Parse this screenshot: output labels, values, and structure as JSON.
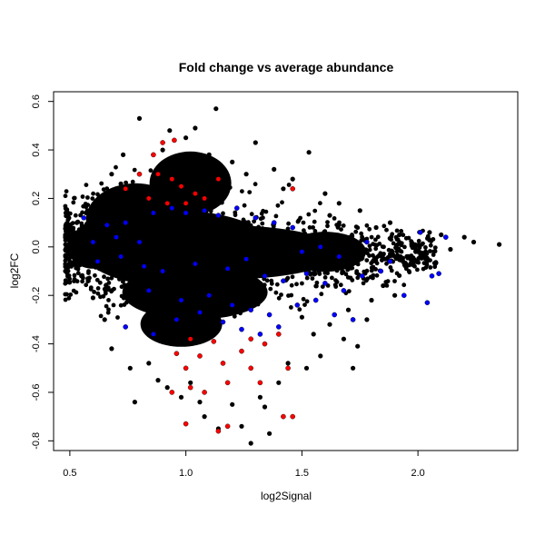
{
  "chart_data": {
    "type": "scatter",
    "title": "Fold change vs average abundance",
    "xlabel": "log2Signal",
    "ylabel": "log2FC",
    "xlim": [
      0.43,
      2.43
    ],
    "ylim": [
      -0.84,
      0.64
    ],
    "x_ticks": [
      0.5,
      1.0,
      1.5,
      2.0
    ],
    "x_tick_labels": [
      "0.5",
      "1.0",
      "1.5",
      "2.0"
    ],
    "y_ticks": [
      -0.8,
      -0.6,
      -0.4,
      -0.2,
      0.0,
      0.2,
      0.4,
      0.6
    ],
    "y_tick_labels": [
      "-0.8",
      "-0.6",
      "-0.4",
      "-0.2",
      "0.0",
      "0.2",
      "0.4",
      "0.6"
    ],
    "grid": false,
    "series": [
      {
        "color": "#000000",
        "points": [
          [
            0.8,
            0.53
          ],
          [
            1.13,
            0.57
          ],
          [
            1.04,
            0.49
          ],
          [
            0.93,
            0.48
          ],
          [
            1.3,
            0.43
          ],
          [
            1.53,
            0.39
          ],
          [
            0.73,
            0.38
          ],
          [
            1.2,
            0.35
          ],
          [
            1.0,
            0.45
          ],
          [
            1.38,
            0.32
          ],
          [
            1.46,
            0.28
          ],
          [
            0.68,
            0.3
          ],
          [
            1.6,
            0.22
          ],
          [
            1.75,
            0.15
          ],
          [
            1.62,
            0.13
          ],
          [
            1.88,
            0.1
          ],
          [
            2.05,
            0.06
          ],
          [
            2.1,
            0.05
          ],
          [
            2.2,
            0.04
          ],
          [
            2.35,
            0.01
          ],
          [
            2.24,
            0.02
          ],
          [
            2.14,
            -0.01
          ],
          [
            2.03,
            -0.04
          ],
          [
            1.95,
            -0.08
          ],
          [
            1.85,
            -0.16
          ],
          [
            1.78,
            -0.3
          ],
          [
            1.74,
            -0.41
          ],
          [
            1.68,
            -0.38
          ],
          [
            1.72,
            -0.5
          ],
          [
            1.62,
            -0.32
          ],
          [
            1.55,
            -0.36
          ],
          [
            1.5,
            -0.29
          ],
          [
            0.78,
            -0.64
          ],
          [
            1.06,
            -0.64
          ],
          [
            1.36,
            -0.77
          ],
          [
            1.28,
            -0.81
          ],
          [
            1.24,
            -0.74
          ],
          [
            1.14,
            -0.75
          ],
          [
            1.32,
            -0.62
          ],
          [
            1.08,
            -0.7
          ],
          [
            0.98,
            -0.62
          ],
          [
            1.2,
            -0.65
          ],
          [
            0.92,
            -0.58
          ],
          [
            0.76,
            -0.5
          ],
          [
            0.84,
            -0.48
          ],
          [
            0.68,
            -0.42
          ],
          [
            0.65,
            -0.3
          ],
          [
            0.6,
            -0.21
          ],
          [
            0.55,
            -0.12
          ],
          [
            0.52,
            -0.06
          ],
          [
            0.5,
            0.03
          ],
          [
            0.53,
            0.1
          ],
          [
            0.57,
            0.14
          ],
          [
            0.62,
            0.18
          ],
          [
            0.66,
            0.21
          ],
          [
            0.72,
            0.26
          ],
          [
            0.9,
            0.4
          ],
          [
            1.1,
            0.38
          ],
          [
            0.96,
            0.34
          ],
          [
            1.26,
            0.3
          ],
          [
            1.42,
            0.24
          ],
          [
            1.66,
            0.18
          ],
          [
            1.82,
            0.08
          ],
          [
            1.92,
            0.05
          ],
          [
            2.0,
            -0.02
          ],
          [
            1.9,
            -0.2
          ],
          [
            1.8,
            -0.22
          ],
          [
            1.7,
            -0.26
          ],
          [
            1.58,
            -0.45
          ],
          [
            1.44,
            -0.48
          ],
          [
            1.4,
            -0.56
          ],
          [
            1.52,
            -0.5
          ],
          [
            1.34,
            -0.66
          ],
          [
            0.88,
            -0.55
          ],
          [
            1.02,
            -0.56
          ]
        ]
      },
      {
        "color": "#0000ff",
        "points": [
          [
            0.56,
            0.12
          ],
          [
            0.66,
            0.09
          ],
          [
            0.74,
            0.1
          ],
          [
            0.86,
            0.14
          ],
          [
            0.94,
            0.16
          ],
          [
            1.0,
            0.14
          ],
          [
            1.08,
            0.15
          ],
          [
            1.14,
            0.13
          ],
          [
            1.22,
            0.16
          ],
          [
            1.3,
            0.12
          ],
          [
            1.38,
            0.1
          ],
          [
            1.46,
            0.08
          ],
          [
            0.62,
            -0.06
          ],
          [
            0.72,
            -0.04
          ],
          [
            0.82,
            -0.08
          ],
          [
            0.9,
            -0.1
          ],
          [
            1.04,
            -0.07
          ],
          [
            1.18,
            -0.09
          ],
          [
            1.26,
            -0.05
          ],
          [
            1.34,
            -0.12
          ],
          [
            1.42,
            -0.14
          ],
          [
            1.52,
            -0.11
          ],
          [
            1.6,
            -0.15
          ],
          [
            1.68,
            -0.18
          ],
          [
            1.76,
            -0.12
          ],
          [
            1.84,
            -0.1
          ],
          [
            1.94,
            -0.2
          ],
          [
            2.04,
            -0.23
          ],
          [
            2.06,
            -0.12
          ],
          [
            2.09,
            -0.11
          ],
          [
            2.12,
            0.04
          ],
          [
            2.01,
            0.06
          ],
          [
            0.74,
            -0.33
          ],
          [
            0.86,
            -0.36
          ],
          [
            0.96,
            -0.3
          ],
          [
            1.06,
            -0.27
          ],
          [
            1.16,
            -0.31
          ],
          [
            1.24,
            -0.34
          ],
          [
            1.32,
            -0.36
          ],
          [
            1.4,
            -0.33
          ],
          [
            1.48,
            -0.24
          ],
          [
            1.56,
            -0.22
          ],
          [
            1.64,
            -0.28
          ],
          [
            1.72,
            -0.3
          ],
          [
            0.84,
            -0.18
          ],
          [
            0.98,
            -0.22
          ],
          [
            1.1,
            -0.2
          ],
          [
            1.2,
            -0.24
          ],
          [
            1.28,
            -0.26
          ],
          [
            1.36,
            -0.28
          ],
          [
            0.6,
            0.02
          ],
          [
            0.7,
            0.04
          ],
          [
            0.8,
            0.02
          ],
          [
            1.5,
            -0.02
          ],
          [
            1.58,
            0.0
          ],
          [
            1.66,
            -0.04
          ],
          [
            1.78,
            0.02
          ],
          [
            1.88,
            -0.06
          ]
        ]
      },
      {
        "color": "#ff0000",
        "points": [
          [
            0.86,
            0.38
          ],
          [
            0.9,
            0.43
          ],
          [
            0.95,
            0.44
          ],
          [
            0.8,
            0.3
          ],
          [
            0.88,
            0.3
          ],
          [
            0.94,
            0.28
          ],
          [
            0.98,
            0.25
          ],
          [
            1.04,
            0.22
          ],
          [
            1.08,
            0.2
          ],
          [
            0.84,
            0.2
          ],
          [
            0.74,
            0.24
          ],
          [
            0.92,
            0.18
          ],
          [
            1.0,
            0.18
          ],
          [
            1.14,
            0.28
          ],
          [
            1.46,
            0.24
          ],
          [
            1.02,
            -0.38
          ],
          [
            1.12,
            -0.39
          ],
          [
            1.28,
            -0.38
          ],
          [
            1.34,
            -0.4
          ],
          [
            1.4,
            -0.36
          ],
          [
            1.24,
            -0.43
          ],
          [
            1.16,
            -0.48
          ],
          [
            1.06,
            -0.45
          ],
          [
            1.0,
            -0.5
          ],
          [
            0.96,
            -0.44
          ],
          [
            0.94,
            -0.6
          ],
          [
            1.02,
            -0.58
          ],
          [
            1.08,
            -0.6
          ],
          [
            1.18,
            -0.56
          ],
          [
            1.28,
            -0.5
          ],
          [
            1.32,
            -0.56
          ],
          [
            1.44,
            -0.5
          ],
          [
            1.46,
            -0.7
          ],
          [
            1.42,
            -0.7
          ],
          [
            1.18,
            -0.74
          ],
          [
            1.14,
            -0.76
          ],
          [
            1.0,
            -0.73
          ]
        ]
      }
    ]
  }
}
